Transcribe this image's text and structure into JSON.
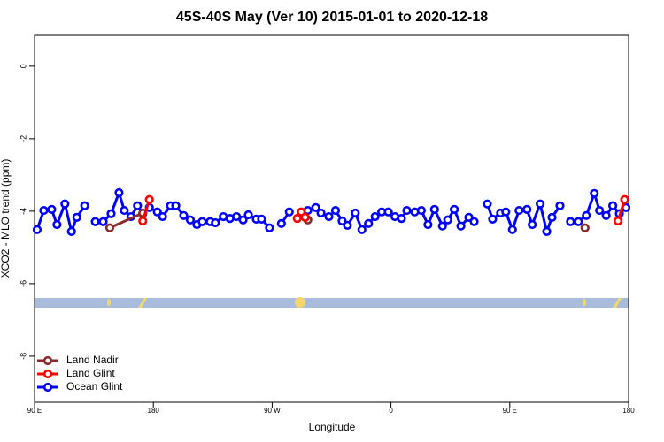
{
  "chart_data": {
    "type": "line",
    "title": "45S-40S May (Ver 10)   2015-01-01 to 2020-12-18",
    "x_label": "Longitude",
    "y_label": "XCO2 - MLO trend (ppm)",
    "xlim": [
      90,
      540
    ],
    "ylim": [
      0.85,
      -9.27
    ],
    "xticks": [
      {
        "value": 90,
        "label": "90 E"
      },
      180,
      {
        "value": 270,
        "label": "90 W"
      },
      {
        "value": 360,
        "label": "0"
      },
      {
        "value": 450,
        "label": "90 E"
      },
      {
        "value": 540,
        "label": "180"
      }
    ],
    "yticks": [
      0,
      -2,
      -4,
      -6,
      -8
    ],
    "legend": "bottom-left",
    "series": [
      {
        "name": "Land Nadir",
        "color": "#8b2a2a",
        "x": [
          147,
          172,
          230,
          297,
          400,
          507
        ],
        "values": [
          -4.46,
          -4.05,
          null,
          -4.24,
          null,
          -4.46
        ]
      },
      {
        "name": "Land Glint",
        "color": "#ff0000",
        "x": [
          172,
          177,
          230,
          289,
          292,
          295,
          400,
          532,
          537
        ],
        "values": [
          -4.27,
          -3.68,
          null,
          -4.2,
          -4.02,
          -4.17,
          null,
          -4.27,
          -3.68
        ]
      },
      {
        "name": "Ocean Glint",
        "color": "#0000ff",
        "x": [
          92,
          97,
          103,
          107,
          113,
          118,
          122,
          128,
          132,
          136,
          142,
          148,
          154,
          158,
          163,
          168,
          172,
          177,
          183,
          187,
          193,
          197,
          203,
          208,
          213,
          217,
          223,
          227,
          233,
          238,
          243,
          248,
          252,
          258,
          262,
          268,
          272,
          277,
          283,
          290,
          297,
          303,
          307,
          313,
          318,
          323,
          327,
          333,
          338,
          343,
          348,
          353,
          358,
          363,
          368,
          372,
          378,
          383,
          388,
          393,
          399,
          403,
          408,
          413,
          419,
          423,
          428,
          433,
          437,
          443,
          447,
          452,
          457,
          463,
          467,
          473,
          478,
          482,
          488,
          492,
          496,
          502,
          508,
          514,
          518,
          523,
          528,
          533,
          538
        ],
        "values": [
          -4.51,
          -3.98,
          -3.95,
          -4.37,
          -3.8,
          -4.56,
          -4.17,
          -3.85,
          null,
          -4.29,
          -4.29,
          -4.07,
          -3.49,
          -3.98,
          -4.15,
          -3.85,
          -4.07,
          -3.9,
          -4.02,
          -4.15,
          -3.85,
          -3.85,
          -4.12,
          -4.24,
          -4.37,
          -4.29,
          -4.29,
          -4.32,
          -4.15,
          -4.2,
          -4.15,
          -4.24,
          -4.1,
          -4.22,
          -4.22,
          -4.46,
          null,
          -4.34,
          -4.02,
          null,
          -3.98,
          -3.9,
          -4.05,
          -4.15,
          -3.98,
          -4.27,
          -4.39,
          -4.05,
          -4.51,
          -4.34,
          -4.15,
          -4.02,
          -4.02,
          -4.15,
          -4.2,
          -3.98,
          -4.02,
          -3.98,
          -4.37,
          -3.95,
          -4.41,
          -4.24,
          -3.95,
          -4.41,
          -4.17,
          -4.29,
          null,
          -3.8,
          -4.22,
          -4.05,
          -4.02,
          -4.51,
          -3.98,
          -3.95,
          -4.37,
          -3.8,
          -4.56,
          -4.17,
          -3.85,
          null,
          -4.29,
          -4.29,
          -4.12,
          -3.51,
          -3.98,
          -4.12,
          -3.85,
          -4.07,
          -3.9
        ]
      }
    ]
  }
}
